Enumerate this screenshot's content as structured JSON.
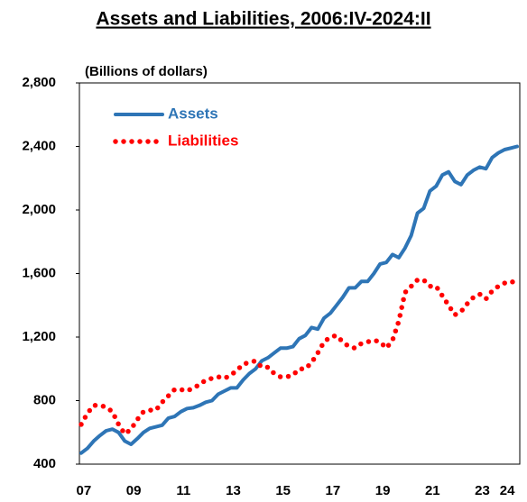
{
  "chart_data": {
    "type": "line",
    "title": "Assets and Liabilities, 2006:IV-2024:II",
    "y_label": "(Billions of dollars)",
    "categories": [
      null,
      "07",
      null,
      null,
      null,
      null,
      null,
      null,
      null,
      "09",
      null,
      null,
      null,
      null,
      null,
      null,
      null,
      "11",
      null,
      null,
      null,
      null,
      null,
      null,
      null,
      "13",
      null,
      null,
      null,
      null,
      null,
      null,
      null,
      "15",
      null,
      null,
      null,
      null,
      null,
      null,
      null,
      "17",
      null,
      null,
      null,
      null,
      null,
      null,
      null,
      "19",
      null,
      null,
      null,
      null,
      null,
      null,
      null,
      "21",
      null,
      null,
      null,
      null,
      null,
      null,
      null,
      "23",
      null,
      null,
      null,
      "24",
      null
    ],
    "series": [
      {
        "name": "Assets",
        "color": "#2e75b6",
        "style": "solid",
        "values": [
          470,
          500,
          545,
          580,
          610,
          620,
          600,
          545,
          525,
          560,
          600,
          625,
          635,
          645,
          690,
          700,
          730,
          750,
          755,
          770,
          790,
          800,
          840,
          860,
          880,
          880,
          930,
          970,
          1000,
          1050,
          1070,
          1100,
          1130,
          1130,
          1140,
          1190,
          1210,
          1260,
          1250,
          1320,
          1350,
          1400,
          1450,
          1510,
          1510,
          1550,
          1550,
          1600,
          1660,
          1670,
          1720,
          1700,
          1760,
          1840,
          1980,
          2010,
          2120,
          2150,
          2220,
          2240,
          2180,
          2160,
          2220,
          2250,
          2270,
          2260,
          2330,
          2360,
          2380,
          2390,
          2400
        ]
      },
      {
        "name": "Liabilities",
        "color": "#ff0000",
        "style": "dotted",
        "values": [
          650,
          720,
          770,
          770,
          760,
          730,
          650,
          590,
          620,
          680,
          730,
          740,
          740,
          790,
          830,
          870,
          870,
          860,
          880,
          900,
          930,
          940,
          950,
          940,
          960,
          990,
          1030,
          1040,
          1050,
          1010,
          1010,
          970,
          950,
          950,
          960,
          1000,
          1000,
          1040,
          1100,
          1170,
          1200,
          1210,
          1170,
          1140,
          1130,
          1160,
          1170,
          1180,
          1170,
          1130,
          1180,
          1300,
          1480,
          1520,
          1560,
          1560,
          1520,
          1520,
          1460,
          1400,
          1340,
          1360,
          1410,
          1450,
          1470,
          1440,
          1490,
          1520,
          1540,
          1550,
          1540
        ]
      }
    ],
    "ylim": [
      400,
      2800
    ],
    "yticks": [
      400,
      800,
      {
        "value": 1200,
        "label": "1,200"
      },
      {
        "value": 1600,
        "label": "1,600"
      },
      {
        "value": 2000,
        "label": "2,000"
      },
      {
        "value": 2400,
        "label": "2,400"
      },
      {
        "value": 2800,
        "label": "2,800"
      }
    ],
    "legend": "upper left"
  }
}
